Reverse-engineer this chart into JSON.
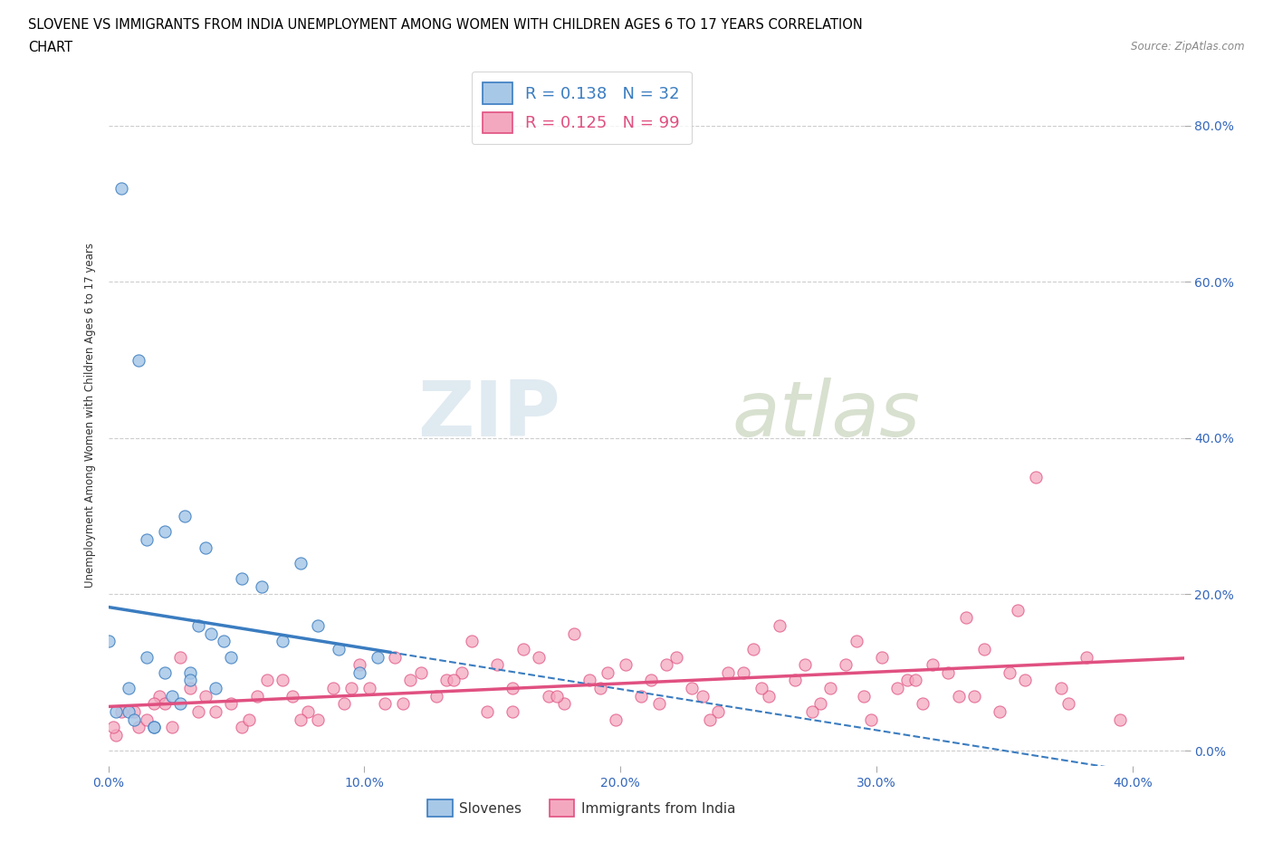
{
  "title_line1": "SLOVENE VS IMMIGRANTS FROM INDIA UNEMPLOYMENT AMONG WOMEN WITH CHILDREN AGES 6 TO 17 YEARS CORRELATION",
  "title_line2": "CHART",
  "source": "Source: ZipAtlas.com",
  "ylabel": "Unemployment Among Women with Children Ages 6 to 17 years",
  "color_slovene": "#a8c8e8",
  "color_india": "#f4a8c0",
  "color_slovene_line": "#3a7cc0",
  "color_india_line": "#e05080",
  "R_slovene": "0.138",
  "N_slovene": "32",
  "R_india": "0.125",
  "N_india": "99",
  "xlim": [
    0.0,
    0.42
  ],
  "ylim": [
    -0.02,
    0.88
  ],
  "background_color": "#ffffff",
  "grid_color": "#c8c8c8",
  "slovene_x": [
    0.005,
    0.012,
    0.0,
    0.008,
    0.018,
    0.025,
    0.03,
    0.022,
    0.015,
    0.038,
    0.045,
    0.032,
    0.042,
    0.052,
    0.06,
    0.048,
    0.075,
    0.068,
    0.082,
    0.09,
    0.003,
    0.01,
    0.018,
    0.028,
    0.105,
    0.098,
    0.035,
    0.04,
    0.015,
    0.022,
    0.008,
    0.032
  ],
  "slovene_y": [
    0.72,
    0.5,
    0.14,
    0.05,
    0.03,
    0.07,
    0.3,
    0.28,
    0.27,
    0.26,
    0.14,
    0.1,
    0.08,
    0.22,
    0.21,
    0.12,
    0.24,
    0.14,
    0.16,
    0.13,
    0.05,
    0.04,
    0.03,
    0.06,
    0.12,
    0.1,
    0.16,
    0.15,
    0.12,
    0.1,
    0.08,
    0.09
  ],
  "india_x": [
    0.005,
    0.012,
    0.02,
    0.003,
    0.015,
    0.022,
    0.032,
    0.042,
    0.052,
    0.062,
    0.072,
    0.082,
    0.092,
    0.102,
    0.112,
    0.122,
    0.132,
    0.142,
    0.152,
    0.162,
    0.172,
    0.182,
    0.192,
    0.202,
    0.212,
    0.222,
    0.232,
    0.242,
    0.252,
    0.262,
    0.272,
    0.282,
    0.292,
    0.302,
    0.312,
    0.322,
    0.332,
    0.342,
    0.352,
    0.362,
    0.372,
    0.382,
    0.01,
    0.025,
    0.038,
    0.048,
    0.055,
    0.068,
    0.078,
    0.088,
    0.098,
    0.108,
    0.118,
    0.128,
    0.138,
    0.148,
    0.158,
    0.168,
    0.178,
    0.188,
    0.198,
    0.208,
    0.218,
    0.228,
    0.238,
    0.248,
    0.258,
    0.268,
    0.278,
    0.288,
    0.298,
    0.308,
    0.318,
    0.328,
    0.338,
    0.348,
    0.358,
    0.002,
    0.018,
    0.035,
    0.058,
    0.075,
    0.095,
    0.115,
    0.135,
    0.158,
    0.175,
    0.195,
    0.215,
    0.235,
    0.255,
    0.275,
    0.295,
    0.315,
    0.335,
    0.355,
    0.375,
    0.395,
    0.028
  ],
  "india_y": [
    0.05,
    0.03,
    0.07,
    0.02,
    0.04,
    0.06,
    0.08,
    0.05,
    0.03,
    0.09,
    0.07,
    0.04,
    0.06,
    0.08,
    0.12,
    0.1,
    0.09,
    0.14,
    0.11,
    0.13,
    0.07,
    0.15,
    0.08,
    0.11,
    0.09,
    0.12,
    0.07,
    0.1,
    0.13,
    0.16,
    0.11,
    0.08,
    0.14,
    0.12,
    0.09,
    0.11,
    0.07,
    0.13,
    0.1,
    0.35,
    0.08,
    0.12,
    0.05,
    0.03,
    0.07,
    0.06,
    0.04,
    0.09,
    0.05,
    0.08,
    0.11,
    0.06,
    0.09,
    0.07,
    0.1,
    0.05,
    0.08,
    0.12,
    0.06,
    0.09,
    0.04,
    0.07,
    0.11,
    0.08,
    0.05,
    0.1,
    0.07,
    0.09,
    0.06,
    0.11,
    0.04,
    0.08,
    0.06,
    0.1,
    0.07,
    0.05,
    0.09,
    0.03,
    0.06,
    0.05,
    0.07,
    0.04,
    0.08,
    0.06,
    0.09,
    0.05,
    0.07,
    0.1,
    0.06,
    0.04,
    0.08,
    0.05,
    0.07,
    0.09,
    0.17,
    0.18,
    0.06,
    0.04,
    0.12
  ],
  "watermark_zip": "ZIP",
  "watermark_atlas": "atlas",
  "watermark_color_zip": "#c0d0e0",
  "watermark_color_atlas": "#b0c8a0"
}
